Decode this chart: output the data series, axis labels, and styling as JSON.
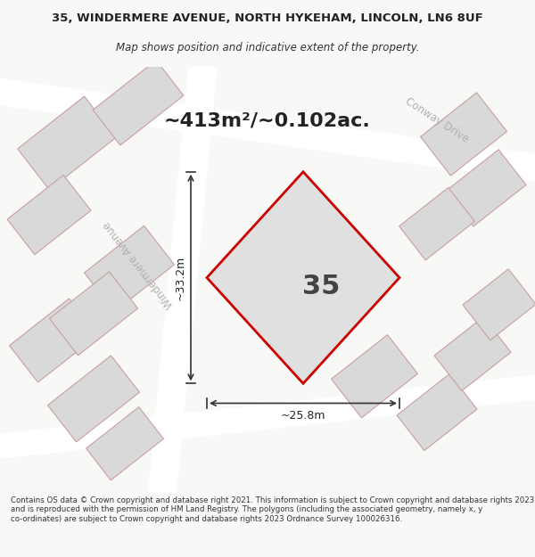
{
  "title_line1": "35, WINDERMERE AVENUE, NORTH HYKEHAM, LINCOLN, LN6 8UF",
  "title_line2": "Map shows position and indicative extent of the property.",
  "area_text": "~413m²/~0.102ac.",
  "property_number": "35",
  "dim_width": "~25.8m",
  "dim_height": "~33.2m",
  "street_windermere": "Windermere Avenue",
  "street_conway": "Conway Drive",
  "footer": "Contains OS data © Crown copyright and database right 2021. This information is subject to Crown copyright and database rights 2023 and is reproduced with the permission of HM Land Registry. The polygons (including the associated geometry, namely x, y co-ordinates) are subject to Crown copyright and database rights 2023 Ordnance Survey 100026316.",
  "bg_color": "#f0eeeb",
  "map_bg": "#f0eeeb",
  "road_color": "#ffffff",
  "plot_outline_color": "#cc0000",
  "plot_fill_color": "#d9d9d9",
  "building_fill": "#d0d0d0",
  "building_outline": "#c0a0a0",
  "dim_line_color": "#333333",
  "text_color": "#333333",
  "street_label_color": "#aaaaaa"
}
